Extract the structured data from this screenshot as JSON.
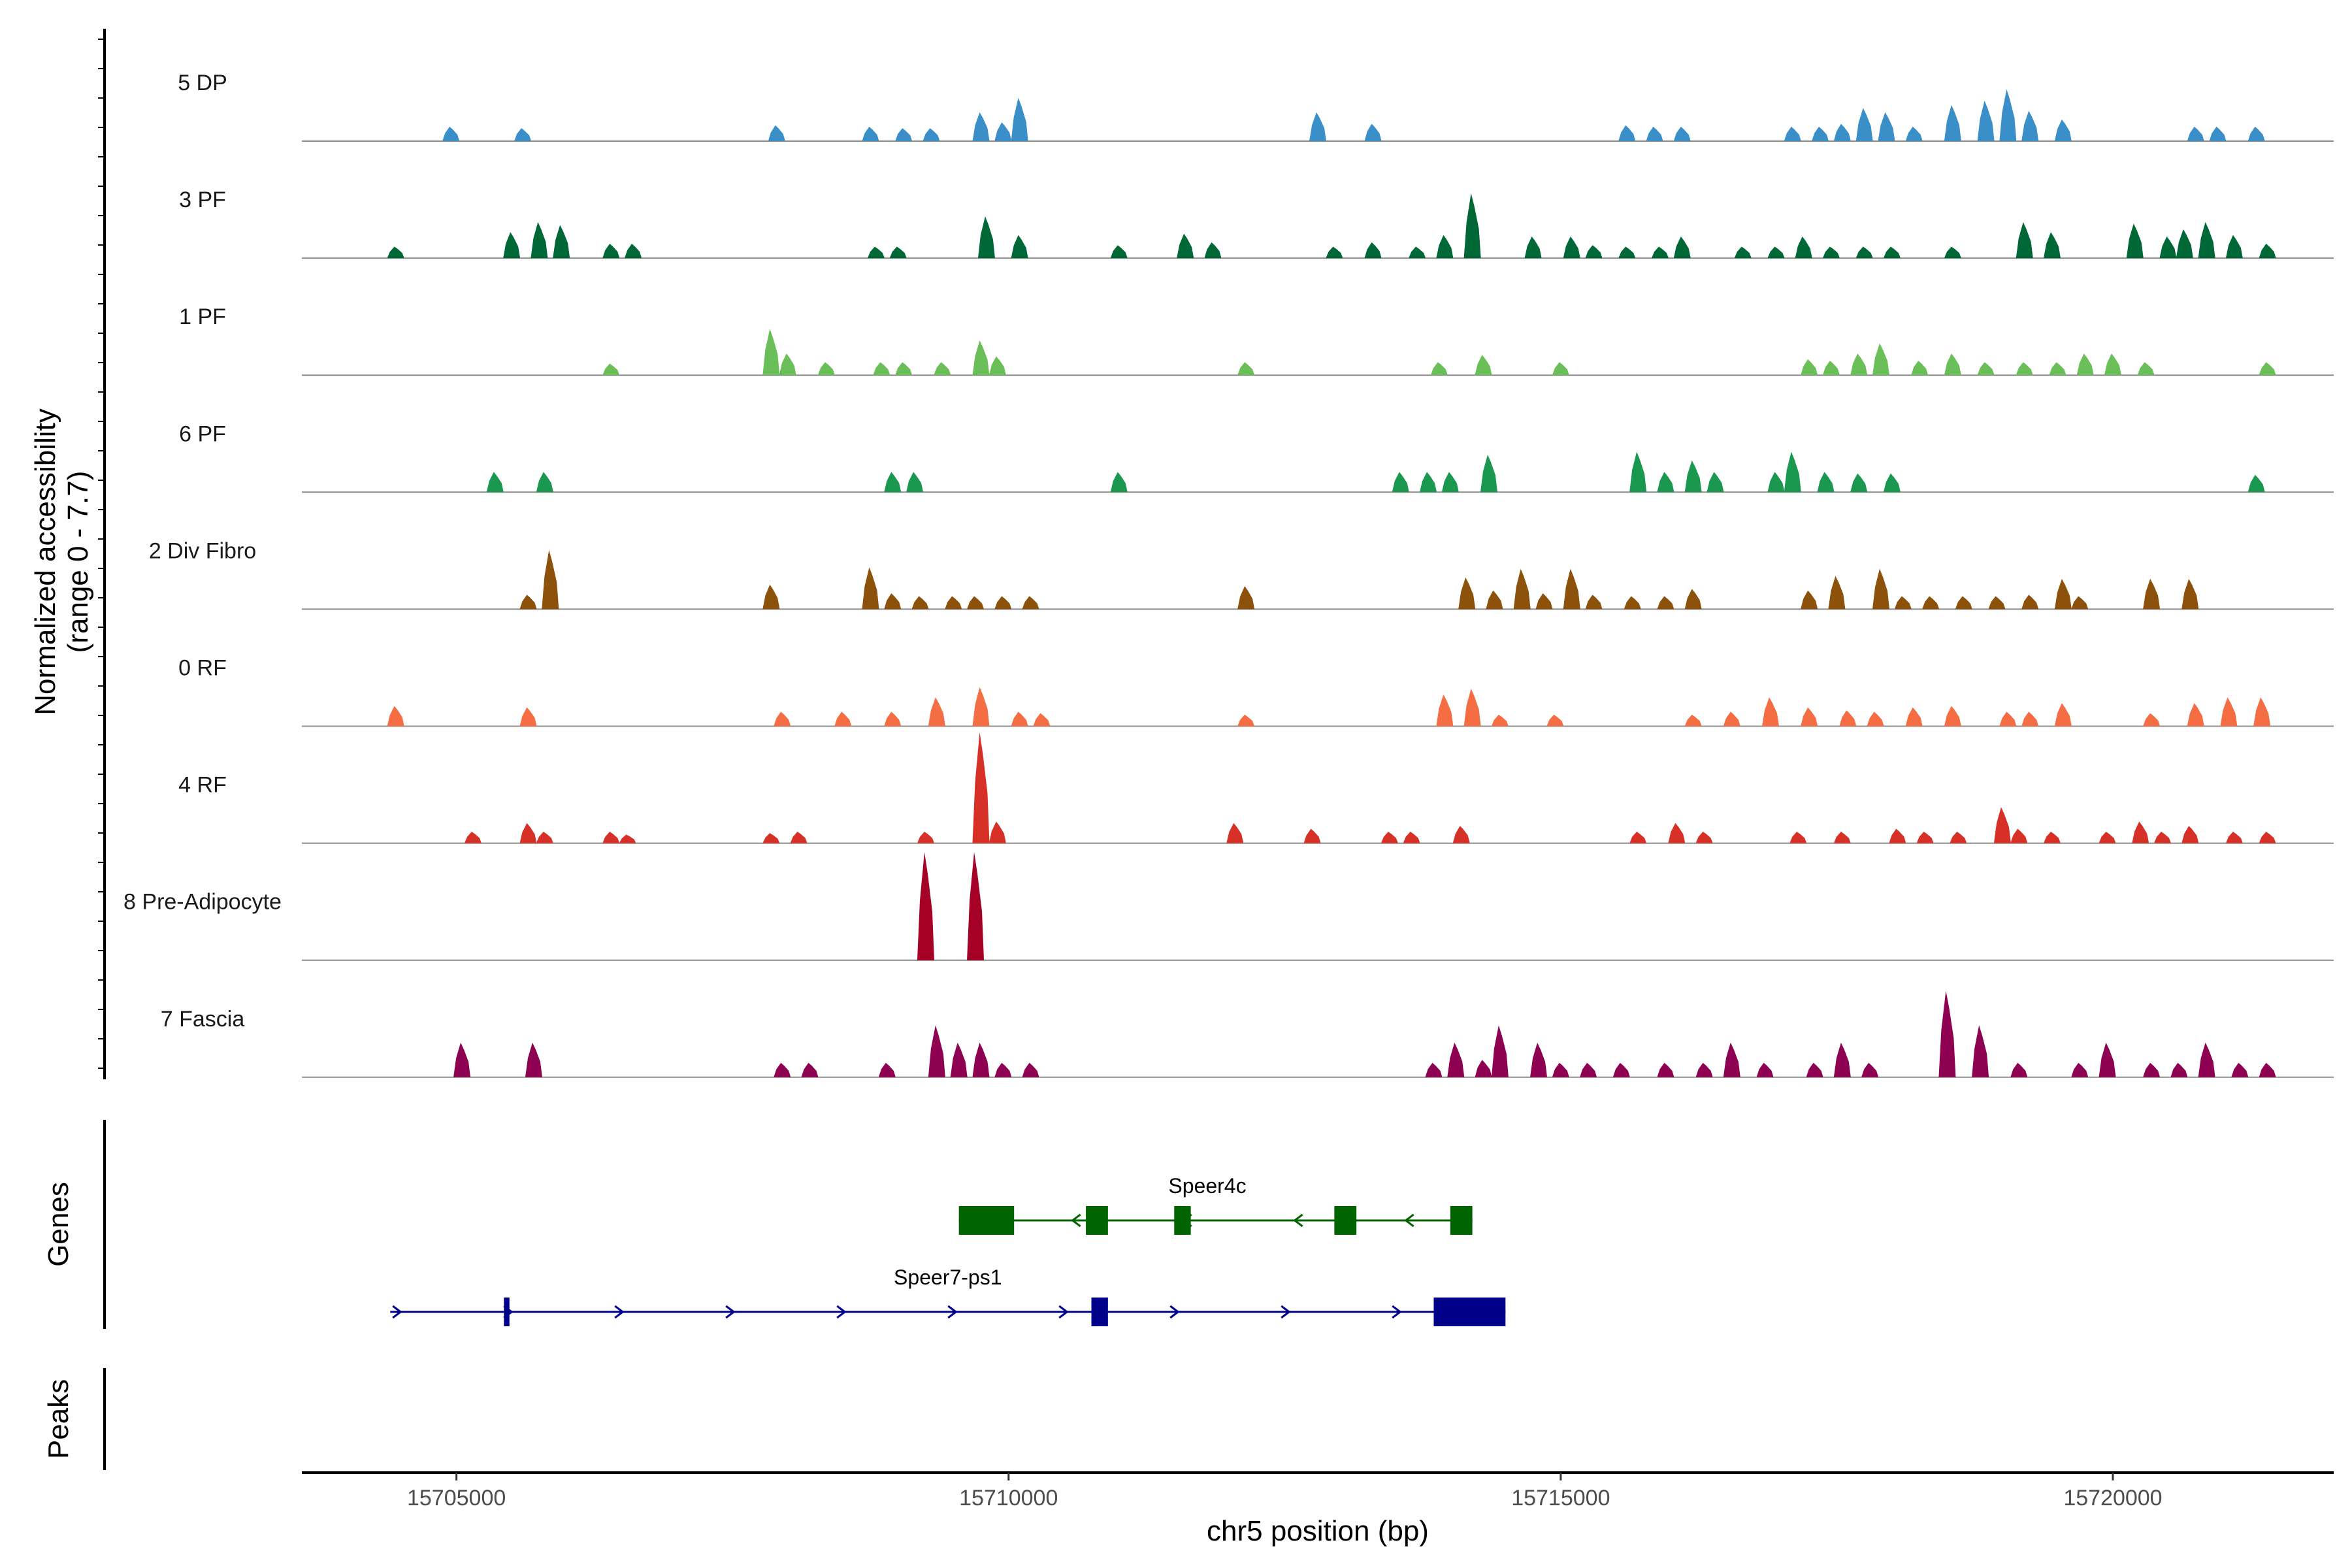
{
  "chart_data": {
    "type": "area",
    "region": "chr5:15703600-15722000",
    "xlabel": "chr5 position (bp)",
    "ylabel_line1": "Normalized accessibility",
    "ylabel_line2": "(range 0 - 7.7)",
    "xlim": [
      15703600,
      15722000
    ],
    "ylim": [
      0,
      7.7
    ],
    "x_ticks": [
      15705000,
      15710000,
      15715000,
      15720000
    ],
    "x_tick_labels": [
      "15705000",
      "15710000",
      "15715000",
      "15720000"
    ],
    "tracks": [
      {
        "name": "5 DP",
        "color": "#3A8FC8",
        "peaks": [
          [
            15704950,
            1.0
          ],
          [
            15705600,
            0.9
          ],
          [
            15707900,
            1.1
          ],
          [
            15708750,
            1.0
          ],
          [
            15709050,
            0.9
          ],
          [
            15709300,
            0.9
          ],
          [
            15709750,
            2.0
          ],
          [
            15709950,
            1.3
          ],
          [
            15710100,
            3.0
          ],
          [
            15712800,
            2.0
          ],
          [
            15713300,
            1.2
          ],
          [
            15715600,
            1.1
          ],
          [
            15715850,
            1.0
          ],
          [
            15716100,
            1.0
          ],
          [
            15717100,
            1.0
          ],
          [
            15717350,
            1.0
          ],
          [
            15717550,
            1.2
          ],
          [
            15717750,
            2.3
          ],
          [
            15717950,
            2.0
          ],
          [
            15718200,
            1.0
          ],
          [
            15718550,
            2.5
          ],
          [
            15718850,
            2.8
          ],
          [
            15719050,
            3.6
          ],
          [
            15719250,
            2.1
          ],
          [
            15719550,
            1.5
          ],
          [
            15720750,
            1.0
          ],
          [
            15720950,
            1.0
          ],
          [
            15721300,
            1.0
          ]
        ]
      },
      {
        "name": "3 PF",
        "color": "#006837",
        "peaks": [
          [
            15704450,
            0.8
          ],
          [
            15705500,
            1.8
          ],
          [
            15705750,
            2.5
          ],
          [
            15705950,
            2.3
          ],
          [
            15706400,
            1.0
          ],
          [
            15706600,
            1.0
          ],
          [
            15708800,
            0.8
          ],
          [
            15709000,
            0.8
          ],
          [
            15709800,
            2.9
          ],
          [
            15710100,
            1.6
          ],
          [
            15711000,
            0.9
          ],
          [
            15711600,
            1.7
          ],
          [
            15711850,
            1.1
          ],
          [
            15712950,
            0.8
          ],
          [
            15713300,
            1.1
          ],
          [
            15713700,
            0.8
          ],
          [
            15713950,
            1.6
          ],
          [
            15714200,
            4.5
          ],
          [
            15714750,
            1.5
          ],
          [
            15715100,
            1.5
          ],
          [
            15715300,
            0.9
          ],
          [
            15715600,
            0.8
          ],
          [
            15715900,
            0.8
          ],
          [
            15716100,
            1.5
          ],
          [
            15716650,
            0.8
          ],
          [
            15716950,
            0.8
          ],
          [
            15717200,
            1.5
          ],
          [
            15717450,
            0.8
          ],
          [
            15717750,
            0.8
          ],
          [
            15718000,
            0.8
          ],
          [
            15718550,
            0.8
          ],
          [
            15719200,
            2.5
          ],
          [
            15719450,
            1.8
          ],
          [
            15720200,
            2.4
          ],
          [
            15720500,
            1.5
          ],
          [
            15720650,
            2.0
          ],
          [
            15720850,
            2.5
          ],
          [
            15721100,
            1.6
          ],
          [
            15721400,
            1.0
          ]
        ]
      },
      {
        "name": "1 PF",
        "color": "#6BBF59",
        "peaks": [
          [
            15706400,
            0.8
          ],
          [
            15707850,
            3.2
          ],
          [
            15708000,
            1.5
          ],
          [
            15708350,
            0.9
          ],
          [
            15708850,
            0.9
          ],
          [
            15709050,
            0.9
          ],
          [
            15709400,
            0.9
          ],
          [
            15709750,
            2.4
          ],
          [
            15709900,
            1.3
          ],
          [
            15712150,
            0.9
          ],
          [
            15713900,
            0.9
          ],
          [
            15714300,
            1.4
          ],
          [
            15715000,
            0.9
          ],
          [
            15717250,
            1.1
          ],
          [
            15717450,
            1.0
          ],
          [
            15717700,
            1.5
          ],
          [
            15717900,
            2.2
          ],
          [
            15718250,
            1.0
          ],
          [
            15718550,
            1.5
          ],
          [
            15718850,
            0.9
          ],
          [
            15719200,
            0.9
          ],
          [
            15719500,
            0.9
          ],
          [
            15719750,
            1.5
          ],
          [
            15720000,
            1.5
          ],
          [
            15720300,
            0.9
          ],
          [
            15721400,
            0.9
          ]
        ]
      },
      {
        "name": "6 PF",
        "color": "#1A9850",
        "peaks": [
          [
            15705350,
            1.4
          ],
          [
            15705800,
            1.4
          ],
          [
            15708950,
            1.4
          ],
          [
            15709150,
            1.4
          ],
          [
            15711000,
            1.4
          ],
          [
            15713550,
            1.4
          ],
          [
            15713800,
            1.4
          ],
          [
            15714000,
            1.4
          ],
          [
            15714350,
            2.6
          ],
          [
            15715700,
            2.8
          ],
          [
            15715950,
            1.4
          ],
          [
            15716200,
            2.2
          ],
          [
            15716400,
            1.4
          ],
          [
            15716950,
            1.4
          ],
          [
            15717100,
            2.8
          ],
          [
            15717400,
            1.4
          ],
          [
            15717700,
            1.3
          ],
          [
            15718000,
            1.3
          ],
          [
            15721300,
            1.2
          ]
        ]
      },
      {
        "name": "2 Div Fibro",
        "color": "#8C510A",
        "peaks": [
          [
            15705650,
            1.0
          ],
          [
            15705850,
            4.1
          ],
          [
            15707850,
            1.7
          ],
          [
            15708750,
            2.9
          ],
          [
            15708950,
            1.1
          ],
          [
            15709200,
            0.9
          ],
          [
            15709500,
            0.9
          ],
          [
            15709700,
            0.9
          ],
          [
            15709950,
            0.9
          ],
          [
            15710200,
            0.9
          ],
          [
            15712150,
            1.6
          ],
          [
            15714150,
            2.2
          ],
          [
            15714400,
            1.3
          ],
          [
            15714650,
            2.8
          ],
          [
            15714850,
            1.1
          ],
          [
            15715100,
            2.8
          ],
          [
            15715300,
            1.0
          ],
          [
            15715650,
            0.9
          ],
          [
            15715950,
            0.9
          ],
          [
            15716200,
            1.4
          ],
          [
            15717250,
            1.3
          ],
          [
            15717500,
            2.3
          ],
          [
            15717900,
            2.8
          ],
          [
            15718100,
            0.9
          ],
          [
            15718350,
            0.9
          ],
          [
            15718650,
            0.9
          ],
          [
            15718950,
            0.9
          ],
          [
            15719250,
            1.0
          ],
          [
            15719550,
            2.1
          ],
          [
            15719700,
            0.9
          ],
          [
            15720350,
            2.1
          ],
          [
            15720700,
            2.1
          ]
        ]
      },
      {
        "name": "0 RF",
        "color": "#F46D43",
        "peaks": [
          [
            15704450,
            1.4
          ],
          [
            15705650,
            1.3
          ],
          [
            15707950,
            1.0
          ],
          [
            15708500,
            1.0
          ],
          [
            15708950,
            1.0
          ],
          [
            15709350,
            2.0
          ],
          [
            15709750,
            2.7
          ],
          [
            15710100,
            1.0
          ],
          [
            15710300,
            0.9
          ],
          [
            15712150,
            0.8
          ],
          [
            15713950,
            2.2
          ],
          [
            15714200,
            2.6
          ],
          [
            15714450,
            0.8
          ],
          [
            15714950,
            0.8
          ],
          [
            15716200,
            0.8
          ],
          [
            15716550,
            1.0
          ],
          [
            15716900,
            2.0
          ],
          [
            15717250,
            1.3
          ],
          [
            15717600,
            1.1
          ],
          [
            15717850,
            1.0
          ],
          [
            15718200,
            1.3
          ],
          [
            15718550,
            1.4
          ],
          [
            15719050,
            1.0
          ],
          [
            15719250,
            1.0
          ],
          [
            15719550,
            1.6
          ],
          [
            15720350,
            0.9
          ],
          [
            15720750,
            1.6
          ],
          [
            15721050,
            2.0
          ],
          [
            15721350,
            2.0
          ]
        ]
      },
      {
        "name": "4 RF",
        "color": "#D73027",
        "peaks": [
          [
            15705150,
            0.8
          ],
          [
            15705650,
            1.4
          ],
          [
            15705800,
            0.8
          ],
          [
            15706400,
            0.8
          ],
          [
            15706550,
            0.6
          ],
          [
            15707850,
            0.7
          ],
          [
            15708100,
            0.8
          ],
          [
            15709250,
            0.8
          ],
          [
            15709750,
            7.7
          ],
          [
            15709900,
            1.5
          ],
          [
            15712050,
            1.4
          ],
          [
            15712750,
            1.0
          ],
          [
            15713450,
            0.8
          ],
          [
            15713650,
            0.8
          ],
          [
            15714100,
            1.2
          ],
          [
            15715700,
            0.8
          ],
          [
            15716050,
            1.4
          ],
          [
            15716300,
            0.8
          ],
          [
            15717150,
            0.8
          ],
          [
            15717550,
            0.8
          ],
          [
            15718050,
            1.0
          ],
          [
            15718300,
            0.8
          ],
          [
            15718600,
            0.8
          ],
          [
            15719000,
            2.5
          ],
          [
            15719150,
            1.0
          ],
          [
            15719450,
            0.8
          ],
          [
            15719950,
            0.8
          ],
          [
            15720250,
            1.5
          ],
          [
            15720450,
            0.8
          ],
          [
            15720700,
            1.2
          ],
          [
            15721100,
            0.8
          ],
          [
            15721400,
            0.8
          ]
        ]
      },
      {
        "name": "8 Pre-Adipocyte",
        "color": "#A50026",
        "peaks": [
          [
            15709250,
            7.5
          ],
          [
            15709700,
            7.5
          ]
        ]
      },
      {
        "name": "7 Fascia",
        "color": "#8E0152",
        "peaks": [
          [
            15705050,
            2.4
          ],
          [
            15705700,
            2.4
          ],
          [
            15707950,
            1.0
          ],
          [
            15708200,
            1.0
          ],
          [
            15708900,
            1.0
          ],
          [
            15709350,
            3.6
          ],
          [
            15709550,
            2.4
          ],
          [
            15709750,
            2.4
          ],
          [
            15709950,
            1.0
          ],
          [
            15710200,
            1.0
          ],
          [
            15713850,
            1.0
          ],
          [
            15714050,
            2.4
          ],
          [
            15714300,
            1.2
          ],
          [
            15714450,
            3.6
          ],
          [
            15714800,
            2.4
          ],
          [
            15715000,
            1.0
          ],
          [
            15715250,
            1.0
          ],
          [
            15715550,
            1.0
          ],
          [
            15715950,
            1.0
          ],
          [
            15716300,
            1.0
          ],
          [
            15716550,
            2.4
          ],
          [
            15716850,
            1.0
          ],
          [
            15717300,
            1.0
          ],
          [
            15717550,
            2.4
          ],
          [
            15717800,
            1.0
          ],
          [
            15718500,
            6.0
          ],
          [
            15718800,
            3.6
          ],
          [
            15719150,
            1.0
          ],
          [
            15719700,
            1.0
          ],
          [
            15719950,
            2.4
          ],
          [
            15720350,
            1.0
          ],
          [
            15720600,
            1.0
          ],
          [
            15720850,
            2.4
          ],
          [
            15721150,
            1.0
          ],
          [
            15721400,
            1.0
          ]
        ]
      }
    ],
    "genes": [
      {
        "name": "Speer4c",
        "color": "#006400",
        "strand": "-",
        "start": 15709550,
        "end": 15714200,
        "label_at": 15711800,
        "exons": [
          [
            15709550,
            15710050
          ],
          [
            15710700,
            15710900
          ],
          [
            15711500,
            15711650
          ],
          [
            15712950,
            15713150
          ],
          [
            15714000,
            15714200
          ]
        ]
      },
      {
        "name": "Speer7-ps1",
        "color": "#00008B",
        "strand": "+",
        "start": 15704400,
        "end": 15714500,
        "label_at": 15709450,
        "exons": [
          [
            15705430,
            15705480
          ],
          [
            15710750,
            15710900
          ],
          [
            15713850,
            15714500
          ]
        ]
      }
    ],
    "panels": {
      "genes_label": "Genes",
      "peaks_label": "Peaks"
    }
  }
}
